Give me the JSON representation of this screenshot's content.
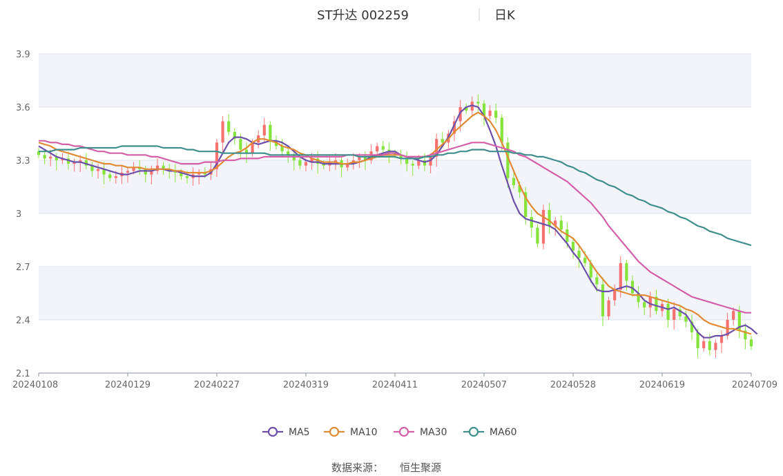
{
  "chart_data": {
    "type": "candlestick",
    "title": "ST升达 002259",
    "period_label": "日K",
    "source_label": "数据来源：",
    "source_value": "恒生聚源",
    "y_ticks": [
      "3.9",
      "3.6",
      "3.3",
      "3",
      "2.7",
      "2.4",
      "2.1"
    ],
    "ylim": [
      2.1,
      3.9
    ],
    "x_ticks": [
      {
        "label": "20240108",
        "index": 0
      },
      {
        "label": "20240129",
        "index": 15
      },
      {
        "label": "20240227",
        "index": 30
      },
      {
        "label": "20240319",
        "index": 45
      },
      {
        "label": "20240411",
        "index": 60
      },
      {
        "label": "20240507",
        "index": 75
      },
      {
        "label": "20240528",
        "index": 90
      },
      {
        "label": "20240619",
        "index": 105
      },
      {
        "label": "20240709",
        "index": 120
      }
    ],
    "n_days": 121,
    "up_color": "#f87171",
    "down_color": "#84e43a",
    "candles_close": [
      3.33,
      3.31,
      3.32,
      3.3,
      3.31,
      3.28,
      3.29,
      3.3,
      3.27,
      3.24,
      3.25,
      3.22,
      3.2,
      3.21,
      3.23,
      3.24,
      3.26,
      3.25,
      3.22,
      3.24,
      3.27,
      3.25,
      3.24,
      3.23,
      3.21,
      3.2,
      3.22,
      3.23,
      3.22,
      3.25,
      3.4,
      3.52,
      3.46,
      3.42,
      3.36,
      3.34,
      3.4,
      3.44,
      3.5,
      3.41,
      3.38,
      3.35,
      3.33,
      3.3,
      3.27,
      3.29,
      3.31,
      3.28,
      3.27,
      3.29,
      3.3,
      3.26,
      3.28,
      3.3,
      3.32,
      3.3,
      3.35,
      3.38,
      3.36,
      3.34,
      3.33,
      3.31,
      3.28,
      3.27,
      3.3,
      3.27,
      3.32,
      3.42,
      3.4,
      3.45,
      3.52,
      3.6,
      3.58,
      3.63,
      3.62,
      3.55,
      3.58,
      3.54,
      3.4,
      3.2,
      3.16,
      3.12,
      2.98,
      2.92,
      2.83,
      3.02,
      2.93,
      2.96,
      2.91,
      2.84,
      2.79,
      2.75,
      2.72,
      2.64,
      2.6,
      2.42,
      2.51,
      2.57,
      2.72,
      2.62,
      2.55,
      2.5,
      2.47,
      2.53,
      2.45,
      2.49,
      2.4,
      2.46,
      2.42,
      2.39,
      2.33,
      2.24,
      2.28,
      2.23,
      2.27,
      2.31,
      2.4,
      2.45,
      2.34,
      2.29,
      2.25
    ],
    "series": [
      {
        "name": "MA5",
        "color": "#6b4fa8",
        "values": [
          3.38,
          3.36,
          3.34,
          3.32,
          3.31,
          3.3,
          3.29,
          3.29,
          3.28,
          3.27,
          3.26,
          3.25,
          3.24,
          3.23,
          3.22,
          3.22,
          3.23,
          3.24,
          3.24,
          3.24,
          3.25,
          3.25,
          3.24,
          3.24,
          3.23,
          3.22,
          3.21,
          3.21,
          3.21,
          3.23,
          3.28,
          3.34,
          3.4,
          3.43,
          3.43,
          3.42,
          3.4,
          3.39,
          3.4,
          3.41,
          3.41,
          3.4,
          3.38,
          3.35,
          3.32,
          3.3,
          3.29,
          3.29,
          3.28,
          3.28,
          3.28,
          3.28,
          3.28,
          3.28,
          3.29,
          3.3,
          3.32,
          3.33,
          3.34,
          3.35,
          3.35,
          3.33,
          3.32,
          3.31,
          3.3,
          3.29,
          3.3,
          3.33,
          3.38,
          3.43,
          3.5,
          3.57,
          3.6,
          3.61,
          3.6,
          3.55,
          3.47,
          3.38,
          3.27,
          3.17,
          3.07,
          3.0,
          2.97,
          2.96,
          2.95,
          2.94,
          2.93,
          2.91,
          2.87,
          2.83,
          2.78,
          2.74,
          2.68,
          2.62,
          2.57,
          2.56,
          2.56,
          2.57,
          2.58,
          2.59,
          2.58,
          2.55,
          2.51,
          2.49,
          2.48,
          2.47,
          2.46,
          2.47,
          2.45,
          2.43,
          2.38,
          2.33,
          2.3,
          2.3,
          2.31,
          2.31,
          2.32,
          2.34,
          2.36,
          2.37,
          2.35,
          2.32
        ]
      },
      {
        "name": "MA10",
        "color": "#e08a34",
        "values": [
          3.4,
          3.39,
          3.38,
          3.36,
          3.35,
          3.34,
          3.33,
          3.32,
          3.31,
          3.3,
          3.29,
          3.28,
          3.28,
          3.27,
          3.27,
          3.26,
          3.26,
          3.26,
          3.25,
          3.25,
          3.25,
          3.25,
          3.25,
          3.24,
          3.24,
          3.23,
          3.23,
          3.23,
          3.23,
          3.24,
          3.26,
          3.29,
          3.32,
          3.34,
          3.35,
          3.37,
          3.4,
          3.42,
          3.42,
          3.41,
          3.4,
          3.38,
          3.37,
          3.36,
          3.34,
          3.33,
          3.31,
          3.3,
          3.29,
          3.29,
          3.29,
          3.28,
          3.28,
          3.29,
          3.29,
          3.3,
          3.31,
          3.32,
          3.33,
          3.33,
          3.33,
          3.33,
          3.32,
          3.32,
          3.32,
          3.32,
          3.33,
          3.36,
          3.39,
          3.42,
          3.46,
          3.49,
          3.52,
          3.55,
          3.57,
          3.55,
          3.52,
          3.47,
          3.4,
          3.32,
          3.24,
          3.16,
          3.09,
          3.04,
          3.0,
          2.98,
          2.96,
          2.93,
          2.9,
          2.88,
          2.86,
          2.82,
          2.77,
          2.72,
          2.67,
          2.63,
          2.59,
          2.57,
          2.56,
          2.55,
          2.54,
          2.54,
          2.54,
          2.53,
          2.52,
          2.51,
          2.5,
          2.49,
          2.48,
          2.46,
          2.45,
          2.43,
          2.4,
          2.38,
          2.37,
          2.36,
          2.35,
          2.35,
          2.34,
          2.33,
          2.32
        ]
      },
      {
        "name": "MA30",
        "color": "#d25fa8",
        "values": [
          3.41,
          3.41,
          3.4,
          3.4,
          3.39,
          3.39,
          3.38,
          3.38,
          3.37,
          3.36,
          3.35,
          3.35,
          3.34,
          3.34,
          3.34,
          3.33,
          3.33,
          3.33,
          3.33,
          3.32,
          3.32,
          3.31,
          3.3,
          3.29,
          3.28,
          3.28,
          3.28,
          3.28,
          3.29,
          3.29,
          3.29,
          3.3,
          3.3,
          3.3,
          3.31,
          3.31,
          3.31,
          3.31,
          3.32,
          3.32,
          3.32,
          3.32,
          3.32,
          3.32,
          3.32,
          3.32,
          3.32,
          3.32,
          3.32,
          3.32,
          3.32,
          3.32,
          3.33,
          3.33,
          3.33,
          3.33,
          3.33,
          3.33,
          3.33,
          3.34,
          3.34,
          3.33,
          3.32,
          3.32,
          3.32,
          3.32,
          3.33,
          3.34,
          3.35,
          3.36,
          3.37,
          3.38,
          3.39,
          3.4,
          3.4,
          3.4,
          3.39,
          3.38,
          3.37,
          3.36,
          3.35,
          3.33,
          3.32,
          3.3,
          3.28,
          3.26,
          3.24,
          3.22,
          3.2,
          3.18,
          3.15,
          3.12,
          3.09,
          3.06,
          3.02,
          2.98,
          2.93,
          2.89,
          2.85,
          2.81,
          2.77,
          2.73,
          2.7,
          2.67,
          2.65,
          2.63,
          2.61,
          2.59,
          2.57,
          2.55,
          2.53,
          2.52,
          2.51,
          2.5,
          2.49,
          2.48,
          2.47,
          2.46,
          2.45,
          2.44,
          2.44
        ]
      },
      {
        "name": "MA60",
        "color": "#3e8e8c",
        "values": [
          3.35,
          3.35,
          3.35,
          3.36,
          3.36,
          3.36,
          3.36,
          3.37,
          3.37,
          3.37,
          3.37,
          3.37,
          3.37,
          3.37,
          3.38,
          3.38,
          3.38,
          3.38,
          3.38,
          3.38,
          3.38,
          3.37,
          3.37,
          3.37,
          3.37,
          3.36,
          3.36,
          3.35,
          3.35,
          3.35,
          3.35,
          3.34,
          3.34,
          3.34,
          3.34,
          3.34,
          3.34,
          3.34,
          3.34,
          3.33,
          3.33,
          3.33,
          3.33,
          3.33,
          3.33,
          3.33,
          3.33,
          3.33,
          3.33,
          3.33,
          3.33,
          3.33,
          3.33,
          3.33,
          3.32,
          3.32,
          3.32,
          3.32,
          3.32,
          3.32,
          3.32,
          3.31,
          3.31,
          3.31,
          3.31,
          3.32,
          3.32,
          3.33,
          3.33,
          3.34,
          3.34,
          3.35,
          3.35,
          3.36,
          3.36,
          3.36,
          3.35,
          3.35,
          3.35,
          3.35,
          3.34,
          3.34,
          3.33,
          3.33,
          3.32,
          3.32,
          3.31,
          3.3,
          3.29,
          3.27,
          3.26,
          3.24,
          3.23,
          3.21,
          3.19,
          3.18,
          3.16,
          3.15,
          3.13,
          3.11,
          3.1,
          3.08,
          3.07,
          3.05,
          3.04,
          3.03,
          3.01,
          3.0,
          2.98,
          2.97,
          2.95,
          2.93,
          2.92,
          2.9,
          2.89,
          2.88,
          2.86,
          2.85,
          2.84,
          2.83,
          2.82
        ]
      }
    ]
  }
}
